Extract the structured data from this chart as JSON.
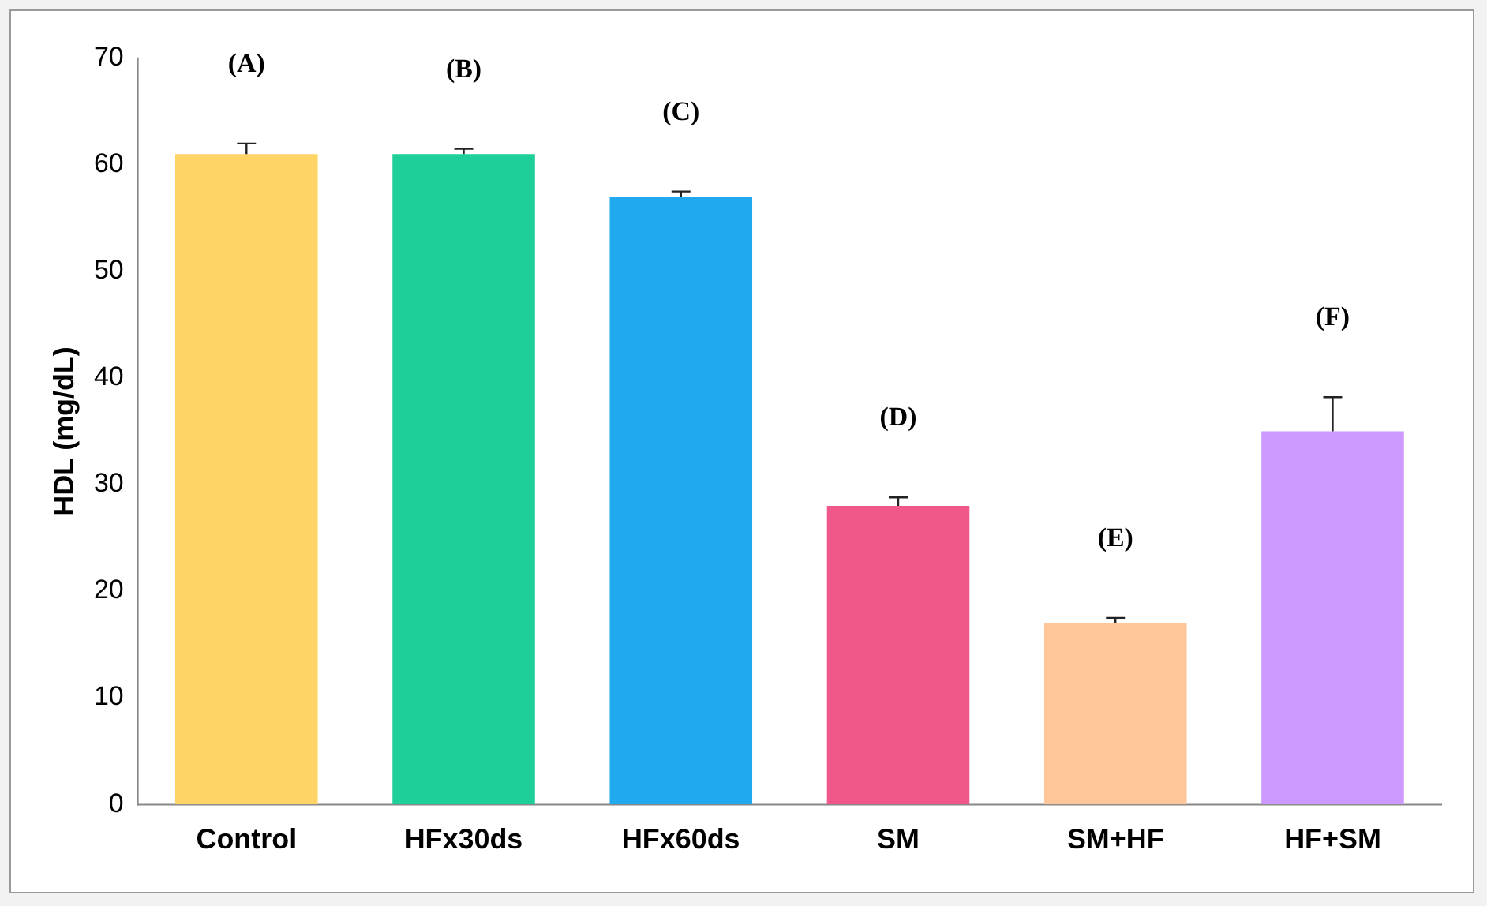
{
  "chart_data": {
    "type": "bar",
    "ylabel": "HDL (mg/dL)",
    "categories": [
      "Control",
      "HFx30ds",
      "HFx60ds",
      "SM",
      "SM+HF",
      "HF+SM"
    ],
    "values": [
      61,
      61,
      57,
      28,
      17,
      35
    ],
    "colors": [
      "#ffd466",
      "#1fcf9a",
      "#21a9f0",
      "#f0588a",
      "#ffc69a",
      "#cc99ff"
    ],
    "errors": [
      [
        61,
        62
      ],
      [
        61,
        61.5
      ],
      [
        57,
        57.5
      ],
      [
        28,
        28.8
      ],
      [
        17,
        17.5
      ],
      [
        35,
        38.2
      ]
    ],
    "ylim": [
      0,
      70
    ],
    "yticks": [
      0,
      10,
      20,
      30,
      40,
      50,
      60,
      70
    ],
    "grid": false,
    "legend": false,
    "annotations": [
      "(A)",
      "(B)",
      "(C)",
      "(D)",
      "(E)",
      "(F)"
    ]
  }
}
